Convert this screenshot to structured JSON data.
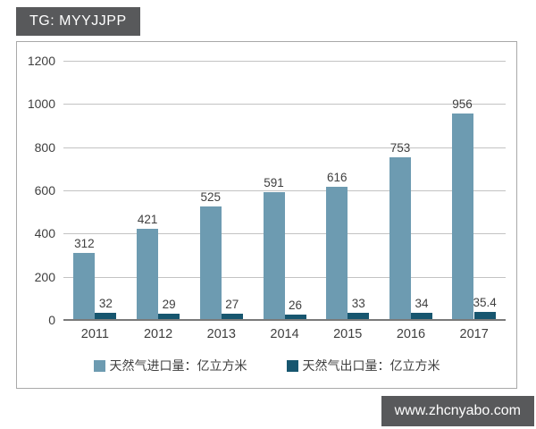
{
  "badge": {
    "label": "TG: MYYJJPP"
  },
  "watermark": {
    "label": "www.zhcnyabo.com"
  },
  "colors": {
    "import_bar": "#6d9bb1",
    "export_bar": "#17566f",
    "badge_bg": "#58595b",
    "grid": "#c3c3c3",
    "axis": "#7a7a7a",
    "text": "#3f3f3f",
    "box_border": "#a9a9a9"
  },
  "chart_data": {
    "type": "bar",
    "categories": [
      "2011",
      "2012",
      "2013",
      "2014",
      "2015",
      "2016",
      "2017"
    ],
    "series": [
      {
        "name": "天然气进口量：亿立方米",
        "color": "#6d9bb1",
        "values": [
          312,
          421,
          525,
          591,
          616,
          753,
          956
        ]
      },
      {
        "name": "天然气出口量：亿立方米",
        "color": "#17566f",
        "values": [
          32,
          29,
          27,
          26,
          33,
          34,
          35.4
        ]
      }
    ],
    "title": "",
    "xlabel": "",
    "ylabel": "",
    "ylim": [
      0,
      1200
    ],
    "yticks": [
      0,
      200,
      400,
      600,
      800,
      1000,
      1200
    ],
    "grid": true,
    "legend_position": "bottom",
    "data_labels": true
  }
}
